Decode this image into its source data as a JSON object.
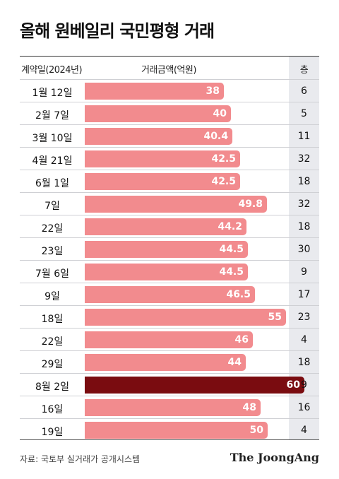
{
  "title": "올해 원베일리 국민평형 거래",
  "header": {
    "date_label": "계약일(2024년)",
    "amount_label": "거래금액(억원)",
    "floor_label": "층"
  },
  "chart_data": {
    "type": "bar",
    "orientation": "horizontal",
    "categories": [
      "1월 12일",
      "2월 7일",
      "3월 10일",
      "4월 21일",
      "6월 1일",
      "7일",
      "22일",
      "23일",
      "7월 6일",
      "9일",
      "18일",
      "22일",
      "29일",
      "8월 2일",
      "16일",
      "19일"
    ],
    "values": [
      38,
      40,
      40.4,
      42.5,
      42.5,
      49.8,
      44.2,
      44.5,
      44.5,
      46.5,
      55,
      46,
      44,
      60,
      48,
      50
    ],
    "floors": [
      6,
      5,
      11,
      32,
      18,
      32,
      18,
      30,
      9,
      17,
      23,
      4,
      18,
      9,
      16,
      4
    ],
    "highlight_index": 13,
    "xlim": [
      0,
      60
    ],
    "colors": {
      "bar": "#f28b8e",
      "highlight": "#7a0c10"
    }
  },
  "source": "자료: 국토부 실거래가 공개시스템",
  "brand": "The JoongAng"
}
